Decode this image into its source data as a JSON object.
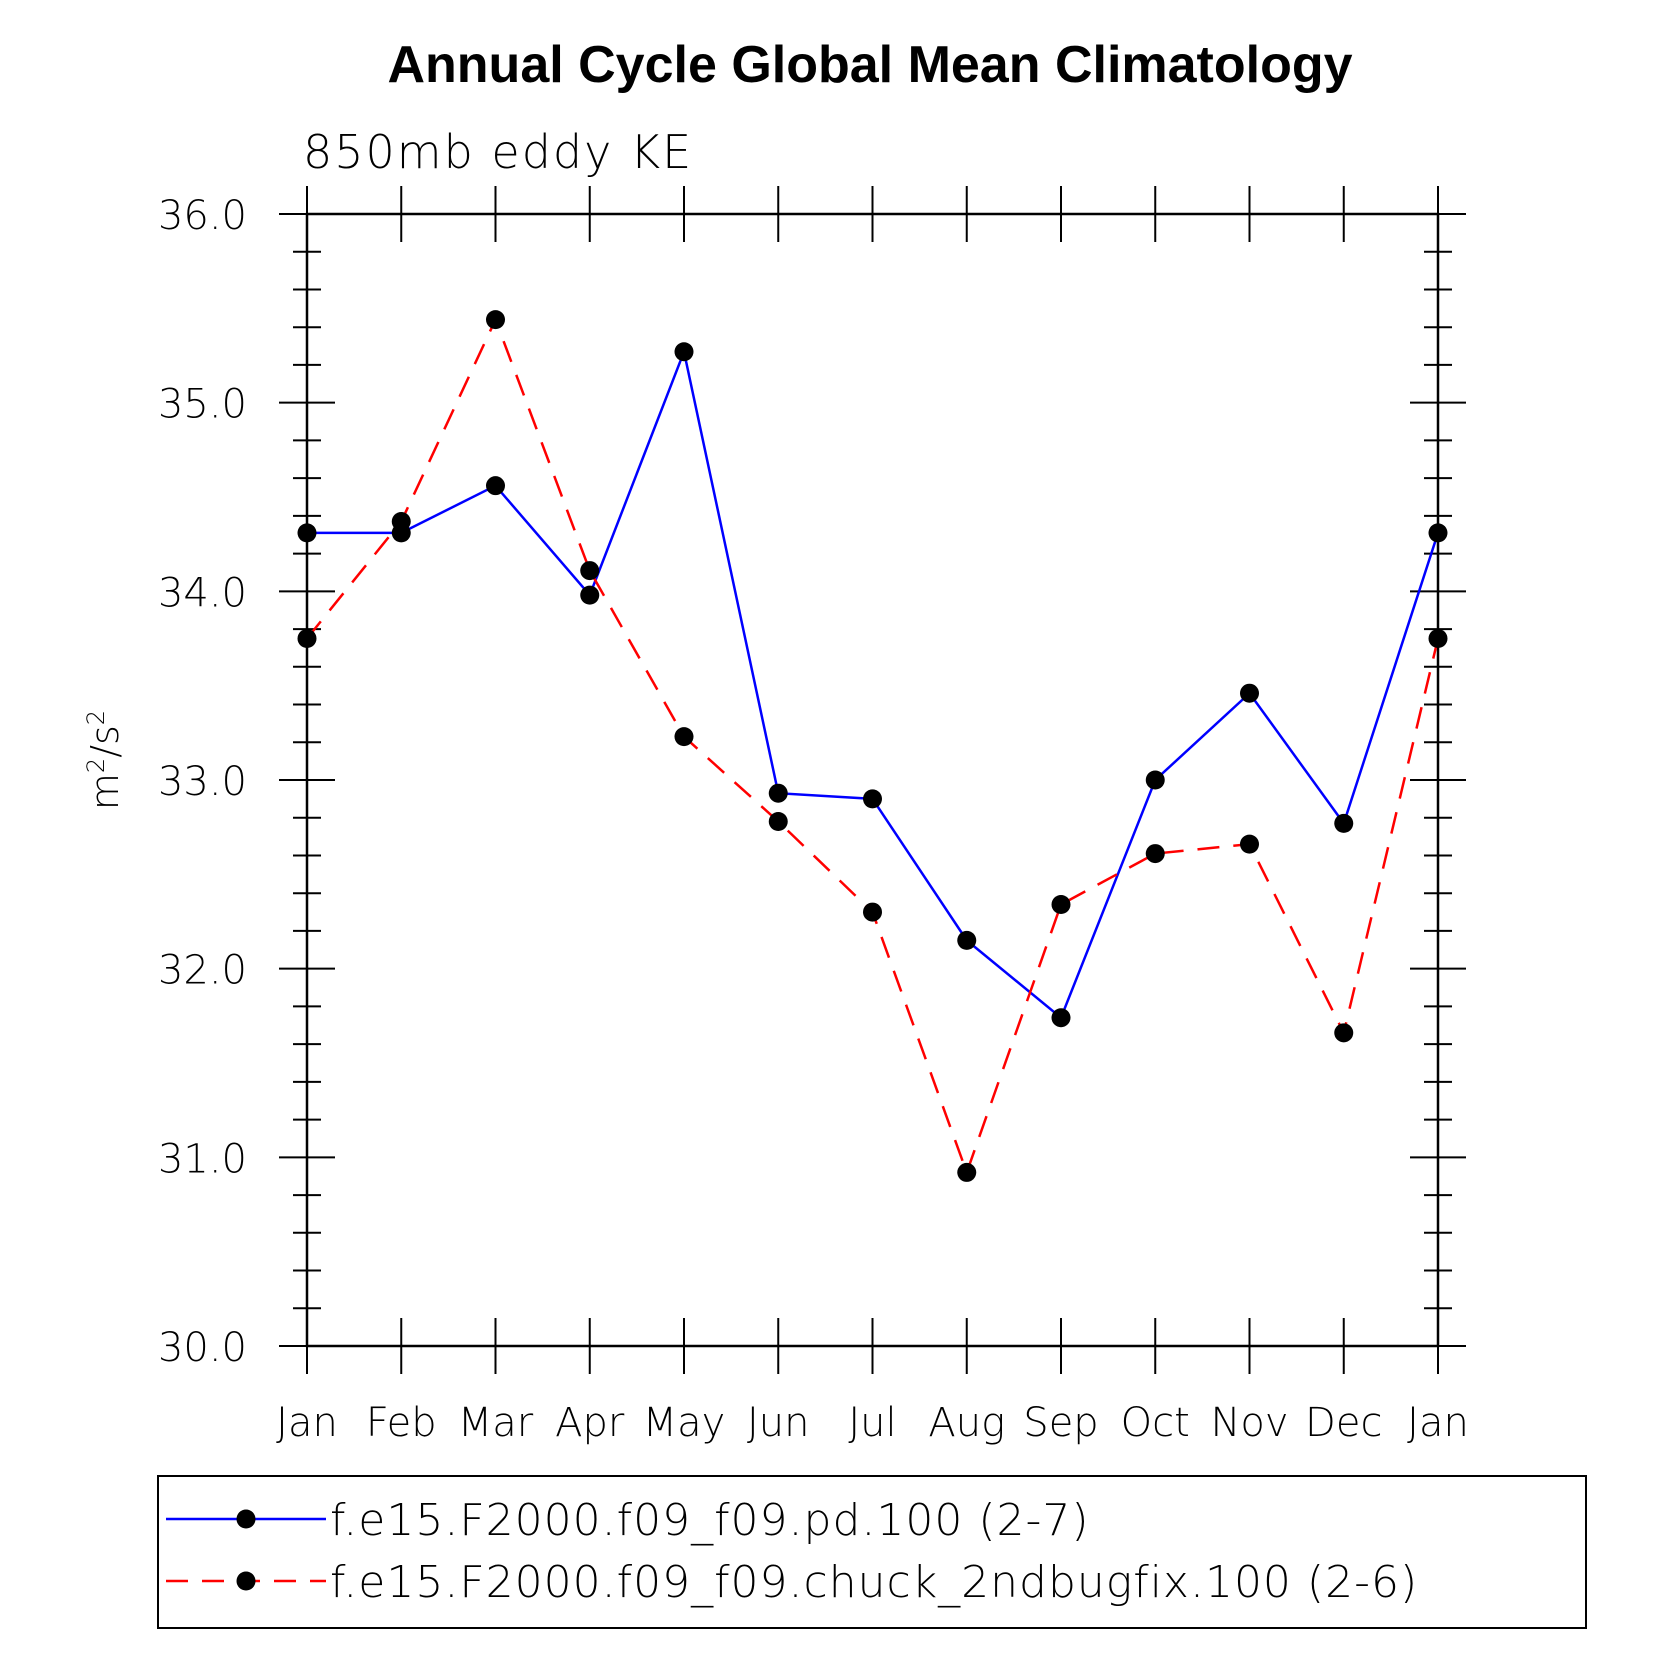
{
  "chart_data": {
    "type": "line",
    "title": "Annual Cycle Global Mean Climatology",
    "subtitle": "850mb eddy KE",
    "ylabel": "m2/s2",
    "ylabel_base": "m",
    "ylabel_mid": "/s",
    "ylabel_sup": "2",
    "xlabel": "",
    "categories": [
      "Jan",
      "Feb",
      "Mar",
      "Apr",
      "May",
      "Jun",
      "Jul",
      "Aug",
      "Sep",
      "Oct",
      "Nov",
      "Dec",
      "Jan"
    ],
    "ylim": [
      30.0,
      36.0
    ],
    "yticks": [
      "30.0",
      "31.0",
      "32.0",
      "33.0",
      "34.0",
      "35.0",
      "36.0"
    ],
    "grid": false,
    "legend_position": "bottom",
    "series": [
      {
        "name": "f.e15.F2000.f09_f09.pd.100 (2-7)",
        "color": "#0000ff",
        "style": "solid",
        "values": [
          34.31,
          34.31,
          34.56,
          33.98,
          35.27,
          32.93,
          32.9,
          32.15,
          31.74,
          33.0,
          33.46,
          32.77,
          34.31
        ]
      },
      {
        "name": "f.e15.F2000.f09_f09.chuck_2ndbugfix.100 (2-6)",
        "color": "#ff0000",
        "style": "dashed",
        "values": [
          33.75,
          34.37,
          35.44,
          34.11,
          33.23,
          32.78,
          32.3,
          30.92,
          32.34,
          32.61,
          32.66,
          31.66,
          33.75
        ]
      }
    ]
  }
}
